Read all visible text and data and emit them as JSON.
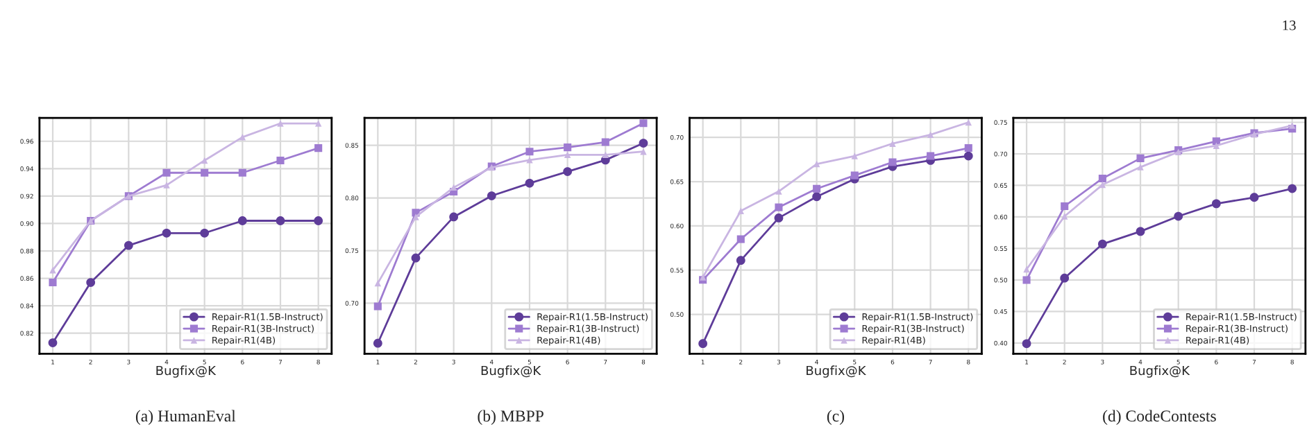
{
  "chart_data": [
    {
      "type": "line",
      "xlabel": "Bugfix@K",
      "x": [
        1,
        2,
        3,
        4,
        5,
        6,
        7,
        8
      ],
      "xlim": [
        0.65,
        8.35
      ],
      "xticks": [
        1,
        2,
        3,
        4,
        5,
        6,
        7,
        8
      ],
      "ylim": [
        0.805,
        0.977
      ],
      "yticks": [
        {
          "value": 0.82,
          "label": "0.82"
        },
        {
          "value": 0.84,
          "label": "0.84"
        },
        {
          "value": 0.86,
          "label": "0.86"
        },
        {
          "value": 0.88,
          "label": "0.88"
        },
        {
          "value": 0.9,
          "label": "0.90"
        },
        {
          "value": 0.92,
          "label": "0.92"
        },
        {
          "value": 0.94,
          "label": "0.94"
        },
        {
          "value": 0.96,
          "label": "0.96"
        }
      ],
      "grid": true,
      "legend": "bottom right",
      "annotations": [
        "(a) HumanEval"
      ],
      "series": [
        {
          "name": "Repair-R1(1.5B-Instruct)",
          "color": "#5e3c99",
          "marker": "circle",
          "values": [
            0.813,
            0.857,
            0.884,
            0.893,
            0.893,
            0.902,
            0.902,
            0.902
          ]
        },
        {
          "name": "Repair-R1(3B-Instruct)",
          "color": "#9e7bd1",
          "marker": "square",
          "values": [
            0.857,
            0.902,
            0.92,
            0.937,
            0.937,
            0.937,
            0.946,
            0.955
          ]
        },
        {
          "name": "Repair-R1(4B)",
          "color": "#c9b5e2",
          "marker": "triangle",
          "values": [
            0.866,
            0.902,
            0.92,
            0.928,
            0.946,
            0.963,
            0.973,
            0.973
          ]
        }
      ]
    },
    {
      "type": "line",
      "xlabel": "Bugfix@K",
      "x": [
        1,
        2,
        3,
        4,
        5,
        6,
        7,
        8
      ],
      "xlim": [
        0.65,
        8.35
      ],
      "xticks": [
        1,
        2,
        3,
        4,
        5,
        6,
        7,
        8
      ],
      "ylim": [
        0.652,
        0.876
      ],
      "yticks": [
        {
          "value": 0.7,
          "label": "0.70"
        },
        0.75,
        {
          "value": 0.8,
          "label": "0.80"
        },
        0.85
      ],
      "grid": true,
      "legend": "bottom right",
      "annotations": [
        "(b) MBPP"
      ],
      "series": [
        {
          "name": "Repair-R1(1.5B-Instruct)",
          "color": "#5e3c99",
          "marker": "circle",
          "values": [
            0.662,
            0.743,
            0.782,
            0.802,
            0.814,
            0.825,
            0.836,
            0.852
          ]
        },
        {
          "name": "Repair-R1(3B-Instruct)",
          "color": "#9e7bd1",
          "marker": "square",
          "values": [
            0.697,
            0.786,
            0.806,
            0.83,
            0.844,
            0.848,
            0.853,
            0.871
          ]
        },
        {
          "name": "Repair-R1(4B)",
          "color": "#c9b5e2",
          "marker": "triangle",
          "values": [
            0.719,
            0.782,
            0.81,
            0.829,
            0.836,
            0.841,
            0.841,
            0.844
          ]
        }
      ]
    },
    {
      "type": "line",
      "xlabel": "Bugfix@K",
      "x": [
        1,
        2,
        3,
        4,
        5,
        6,
        7,
        8
      ],
      "xlim": [
        0.65,
        8.35
      ],
      "xticks": [
        1,
        2,
        3,
        4,
        5,
        6,
        7,
        8
      ],
      "ylim": [
        0.4555,
        0.722
      ],
      "yticks": [
        {
          "value": 0.5,
          "label": "0.50"
        },
        0.55,
        {
          "value": 0.6,
          "label": "0.60"
        },
        0.65,
        {
          "value": 0.7,
          "label": "0.70"
        }
      ],
      "grid": true,
      "legend": "bottom right",
      "annotations": [
        "(c)"
      ],
      "series": [
        {
          "name": "Repair-R1(1.5B-Instruct)",
          "color": "#5e3c99",
          "marker": "circle",
          "values": [
            0.467,
            0.561,
            0.609,
            0.633,
            0.653,
            0.667,
            0.674,
            0.679
          ]
        },
        {
          "name": "Repair-R1(3B-Instruct)",
          "color": "#9e7bd1",
          "marker": "square",
          "values": [
            0.539,
            0.585,
            0.621,
            0.642,
            0.657,
            0.672,
            0.679,
            0.688
          ]
        },
        {
          "name": "Repair-R1(4B)",
          "color": "#c9b5e2",
          "marker": "triangle",
          "values": [
            0.542,
            0.617,
            0.639,
            0.67,
            0.679,
            0.693,
            0.703,
            0.717
          ]
        }
      ]
    },
    {
      "type": "line",
      "xlabel": "Bugfix@K",
      "x": [
        1,
        2,
        3,
        4,
        5,
        6,
        7,
        8
      ],
      "xlim": [
        0.65,
        8.35
      ],
      "xticks": [
        1,
        2,
        3,
        4,
        5,
        6,
        7,
        8
      ],
      "ylim": [
        0.383,
        0.757
      ],
      "yticks": [
        {
          "value": 0.4,
          "label": "0.40"
        },
        0.45,
        {
          "value": 0.5,
          "label": "0.50"
        },
        0.55,
        {
          "value": 0.6,
          "label": "0.60"
        },
        0.65,
        {
          "value": 0.7,
          "label": "0.70"
        },
        0.75
      ],
      "grid": true,
      "legend": "bottom right",
      "annotations": [
        "(d) CodeContests",
        "13"
      ],
      "series": [
        {
          "name": "Repair-R1(1.5B-Instruct)",
          "color": "#5e3c99",
          "marker": "circle",
          "values": [
            0.399,
            0.503,
            0.557,
            0.577,
            0.601,
            0.621,
            0.631,
            0.645
          ]
        },
        {
          "name": "Repair-R1(3B-Instruct)",
          "color": "#9e7bd1",
          "marker": "square",
          "values": [
            0.5,
            0.617,
            0.661,
            0.693,
            0.706,
            0.72,
            0.733,
            0.74
          ]
        },
        {
          "name": "Repair-R1(4B)",
          "color": "#c9b5e2",
          "marker": "triangle",
          "values": [
            0.517,
            0.601,
            0.651,
            0.679,
            0.703,
            0.713,
            0.731,
            0.745
          ]
        }
      ]
    }
  ]
}
